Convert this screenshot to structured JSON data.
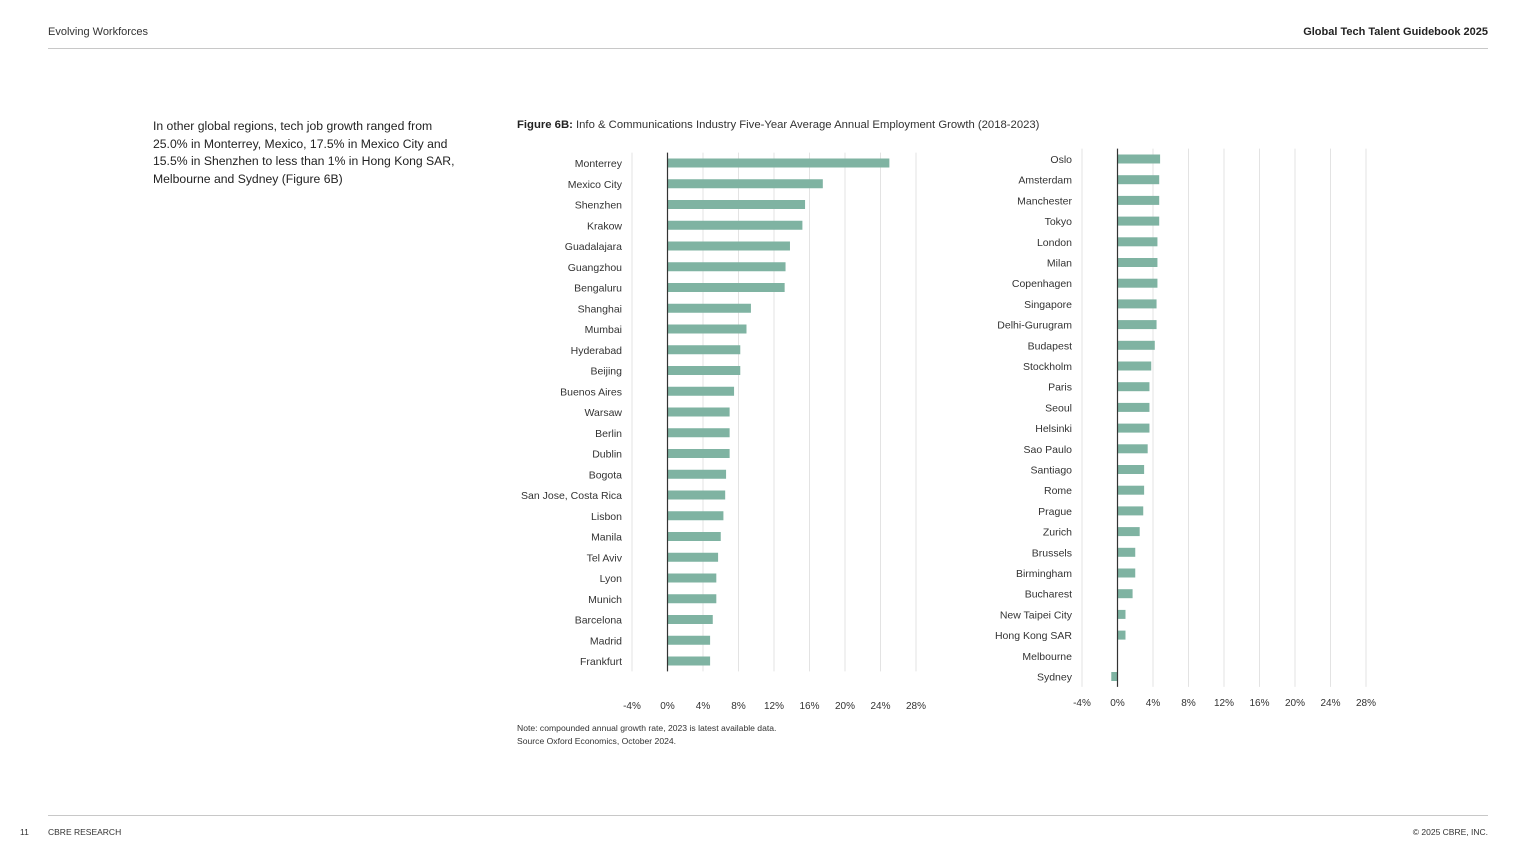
{
  "header": {
    "left": "Evolving Workforces",
    "right": "Global Tech Talent Guidebook 2025"
  },
  "intro_text": "In other global regions, tech job growth ranged from 25.0% in Monterrey, Mexico, 17.5% in Mexico City and 15.5% in Shenzhen to less than 1% in Hong Kong SAR, Melbourne and Sydney (Figure 6B)",
  "figure": {
    "label": "Figure 6B:",
    "title": "Info & Communications Industry Five-Year Average Annual Employment Growth (2018-2023)"
  },
  "notes": {
    "note": "Note: compounded annual growth rate, 2023 is latest available data.",
    "source": "Source Oxford Economics, October 2024."
  },
  "footer": {
    "page_number": "11",
    "left": "CBRE RESEARCH",
    "right": "© 2025 CBRE, INC."
  },
  "colors": {
    "bar": "#7fb3a2",
    "axis": "#333333",
    "grid": "#e3e3e3"
  },
  "chart_data": [
    {
      "type": "bar",
      "orientation": "horizontal",
      "xlim": [
        -4,
        28
      ],
      "ticks": [
        "-4%",
        "0%",
        "4%",
        "8%",
        "12%",
        "16%",
        "20%",
        "24%",
        "28%"
      ],
      "grid": true,
      "categories": [
        "Monterrey",
        "Mexico City",
        "Shenzhen",
        "Krakow",
        "Guadalajara",
        "Guangzhou",
        "Bengaluru",
        "Shanghai",
        "Mumbai",
        "Hyderabad",
        "Beijing",
        "Buenos Aires",
        "Warsaw",
        "Berlin",
        "Dublin",
        "Bogota",
        "San Jose, Costa Rica",
        "Lisbon",
        "Manila",
        "Tel Aviv",
        "Lyon",
        "Munich",
        "Barcelona",
        "Madrid",
        "Frankfurt"
      ],
      "values": [
        25.0,
        17.5,
        15.5,
        15.2,
        13.8,
        13.3,
        13.2,
        9.4,
        8.9,
        8.2,
        8.2,
        7.5,
        7.0,
        7.0,
        7.0,
        6.6,
        6.5,
        6.3,
        6.0,
        5.7,
        5.5,
        5.5,
        5.1,
        4.8,
        4.8
      ]
    },
    {
      "type": "bar",
      "orientation": "horizontal",
      "xlim": [
        -4,
        28
      ],
      "ticks": [
        "-4%",
        "0%",
        "4%",
        "8%",
        "12%",
        "16%",
        "20%",
        "24%",
        "28%"
      ],
      "grid": true,
      "categories": [
        "Oslo",
        "Amsterdam",
        "Manchester",
        "Tokyo",
        "London",
        "Milan",
        "Copenhagen",
        "Singapore",
        "Delhi-Gurugram",
        "Budapest",
        "Stockholm",
        "Paris",
        "Seoul",
        "Helsinki",
        "Sao Paulo",
        "Santiago",
        "Rome",
        "Prague",
        "Zurich",
        "Brussels",
        "Birmingham",
        "Bucharest",
        "New Taipei City",
        "Hong Kong SAR",
        "Melbourne",
        "Sydney"
      ],
      "values": [
        4.8,
        4.7,
        4.7,
        4.7,
        4.5,
        4.5,
        4.5,
        4.4,
        4.4,
        4.2,
        3.8,
        3.6,
        3.6,
        3.6,
        3.4,
        3.0,
        3.0,
        2.9,
        2.5,
        2.0,
        2.0,
        1.7,
        0.9,
        0.9,
        0.0,
        -0.7
      ]
    }
  ]
}
